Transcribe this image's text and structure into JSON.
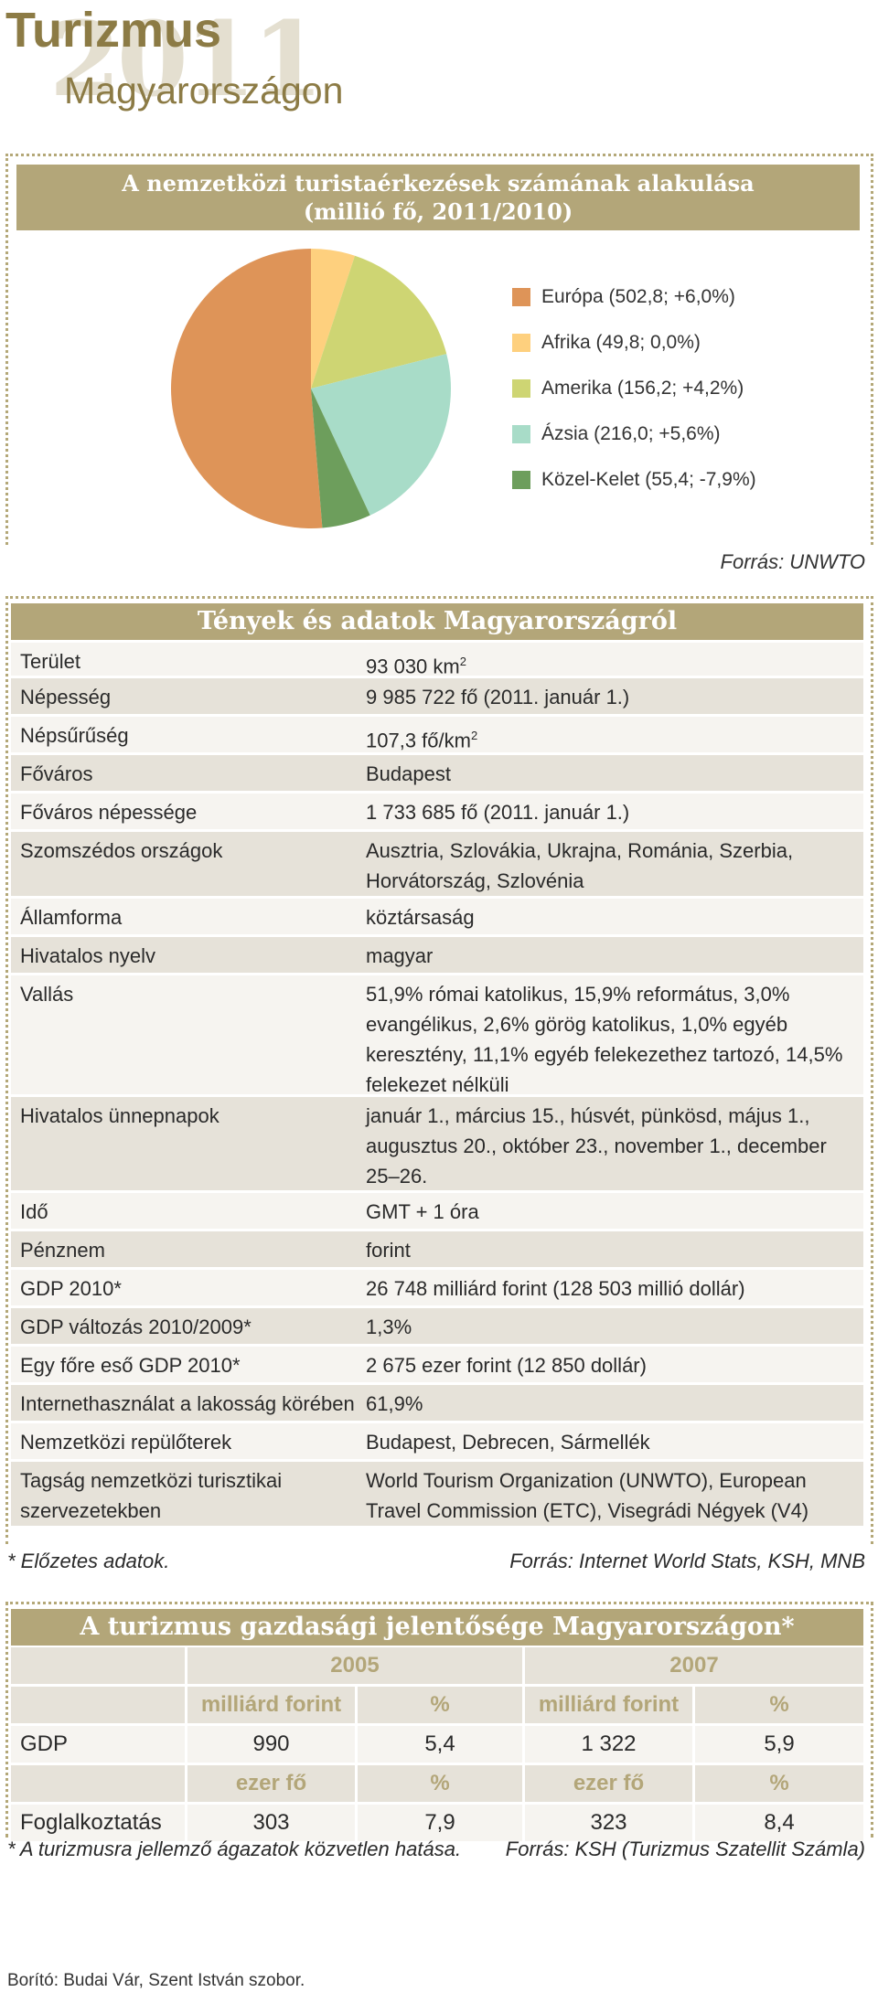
{
  "header": {
    "title": "Turizmus",
    "year": "2011",
    "subtitle": "Magyarországon"
  },
  "pie_section": {
    "title_line1": "A nemzetközi turistaérkezések számának alakulása",
    "title_line2": "(millió fő, 2011/2010)",
    "source": "Forrás: UNWTO"
  },
  "chart_data": {
    "type": "pie",
    "title": "A nemzetközi turistaérkezések számának alakulása (millió fő, 2011/2010)",
    "slices": [
      {
        "name": "Európa",
        "value": 502.8,
        "change": "+6,0%",
        "label": "Európa (502,8; +6,0%)",
        "color": "#de9458"
      },
      {
        "name": "Afrika",
        "value": 49.8,
        "change": "0,0%",
        "label": "Afrika (49,8; 0,0%)",
        "color": "#fed07e"
      },
      {
        "name": "Amerika",
        "value": 156.2,
        "change": "+4,2%",
        "label": "Amerika (156,2; +4,2%)",
        "color": "#ced573"
      },
      {
        "name": "Ázsia",
        "value": 216.0,
        "change": "+5,6%",
        "label": "Ázsia (216,0; +5,6%)",
        "color": "#a8dcc8"
      },
      {
        "name": "Közel-Kelet",
        "value": 55.4,
        "change": "-7,9%",
        "label": "Közel-Kelet (55,4; -7,9%)",
        "color": "#6d9e5c"
      }
    ]
  },
  "facts": {
    "title": "Tények és adatok Magyarországról",
    "rows": [
      {
        "label": "Terület",
        "value": "93 030 km",
        "sup": "2"
      },
      {
        "label": "Népesség",
        "value": "9 985 722 fő (2011. január 1.)"
      },
      {
        "label": "Népsűrűség",
        "value": "107,3 fő/km",
        "sup": "2"
      },
      {
        "label": "Főváros",
        "value": "Budapest"
      },
      {
        "label": "Főváros népessége",
        "value": "1 733 685 fő (2011. január 1.)"
      },
      {
        "label": "Szomszédos országok",
        "value": "Ausztria, Szlovákia, Ukrajna, Románia, Szerbia, Horvátország, Szlovénia"
      },
      {
        "label": "Államforma",
        "value": "köztársaság"
      },
      {
        "label": "Hivatalos nyelv",
        "value": "magyar"
      },
      {
        "label": "Vallás",
        "value": "51,9% római katolikus, 15,9% református, 3,0% evangélikus, 2,6% görög katolikus, 1,0% egyéb keresztény, 11,1% egyéb felekezethez tartozó, 14,5% felekezet nélküli"
      },
      {
        "label": "Hivatalos ünnepnapok",
        "value": "január 1., március 15., húsvét, pünkösd, május 1., augusztus 20., október 23., november 1., december 25–26."
      },
      {
        "label": "Idő",
        "value": "GMT + 1 óra"
      },
      {
        "label": "Pénznem",
        "value": "forint"
      },
      {
        "label": "GDP 2010*",
        "value": "26 748 milliárd forint (128 503 millió dollár)"
      },
      {
        "label": "GDP változás 2010/2009*",
        "value": "1,3%"
      },
      {
        "label": "Egy főre eső GDP 2010*",
        "value": "2 675 ezer forint (12 850 dollár)"
      },
      {
        "label": "Internethasználat a lakosság körében",
        "value": "61,9%"
      },
      {
        "label": "Nemzetközi repülőterek",
        "value": "Budapest, Debrecen, Sármellék"
      },
      {
        "label": "Tagság nemzetközi turisztikai szervezetekben",
        "value": "World Tourism Organization (UNWTO), European Travel Commission (ETC), Visegrádi Négyek (V4)"
      }
    ],
    "note": "* Előzetes adatok.",
    "source": "Forrás: Internet World Stats, KSH, MNB"
  },
  "economy": {
    "title": "A turizmus gazdasági jelentősége Magyarországon*",
    "years": [
      "2005",
      "2007"
    ],
    "unit_row_1": [
      "milliárd forint",
      "%",
      "milliárd forint",
      "%"
    ],
    "gdp_label": "GDP",
    "gdp_values": [
      "990",
      "5,4",
      "1 322",
      "5,9"
    ],
    "unit_row_2": [
      "ezer fő",
      "%",
      "ezer fő",
      "%"
    ],
    "employment_label": "Foglalkoztatás",
    "employment_values": [
      "303",
      "7,9",
      "323",
      "8,4"
    ],
    "note": "* A turizmusra jellemző ágazatok közvetlen hatása.",
    "source": "Forrás: KSH (Turizmus Szatellit Számla)"
  },
  "credit": "Borító: Budai Vár, Szent István szobor."
}
